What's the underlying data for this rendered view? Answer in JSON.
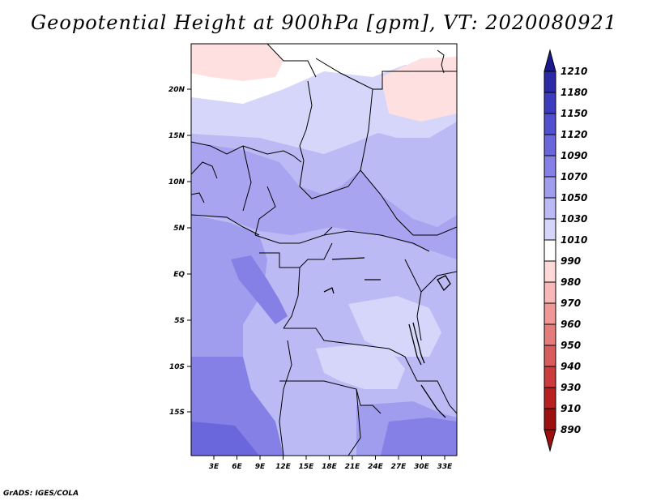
{
  "title": "Geopotential Height at 900hPa [gpm], VT: 2020080921",
  "credit": "GrADS: IGES/COLA",
  "lat_ticks": [
    "20N",
    "15N",
    "10N",
    "5N",
    "EQ",
    "5S",
    "10S",
    "15S"
  ],
  "lon_ticks": [
    "3E",
    "6E",
    "9E",
    "12E",
    "15E",
    "18E",
    "21E",
    "24E",
    "27E",
    "30E",
    "33E"
  ],
  "colorbar": {
    "labels": [
      "1210",
      "1180",
      "1150",
      "1120",
      "1090",
      "1070",
      "1050",
      "1030",
      "1010",
      "990",
      "980",
      "970",
      "960",
      "950",
      "940",
      "930",
      "910",
      "890"
    ],
    "colors": [
      "#1a1a8c",
      "#2a2aa8",
      "#3c3cc0",
      "#5050d0",
      "#6a66dc",
      "#8480e6",
      "#a09cee",
      "#bcbaf4",
      "#d6d6fa",
      "#ffffff",
      "#ffd8d8",
      "#f8b8b8",
      "#f09898",
      "#e47c7c",
      "#d85c5c",
      "#cc3c3c",
      "#b82020",
      "#9c1010"
    ]
  }
}
